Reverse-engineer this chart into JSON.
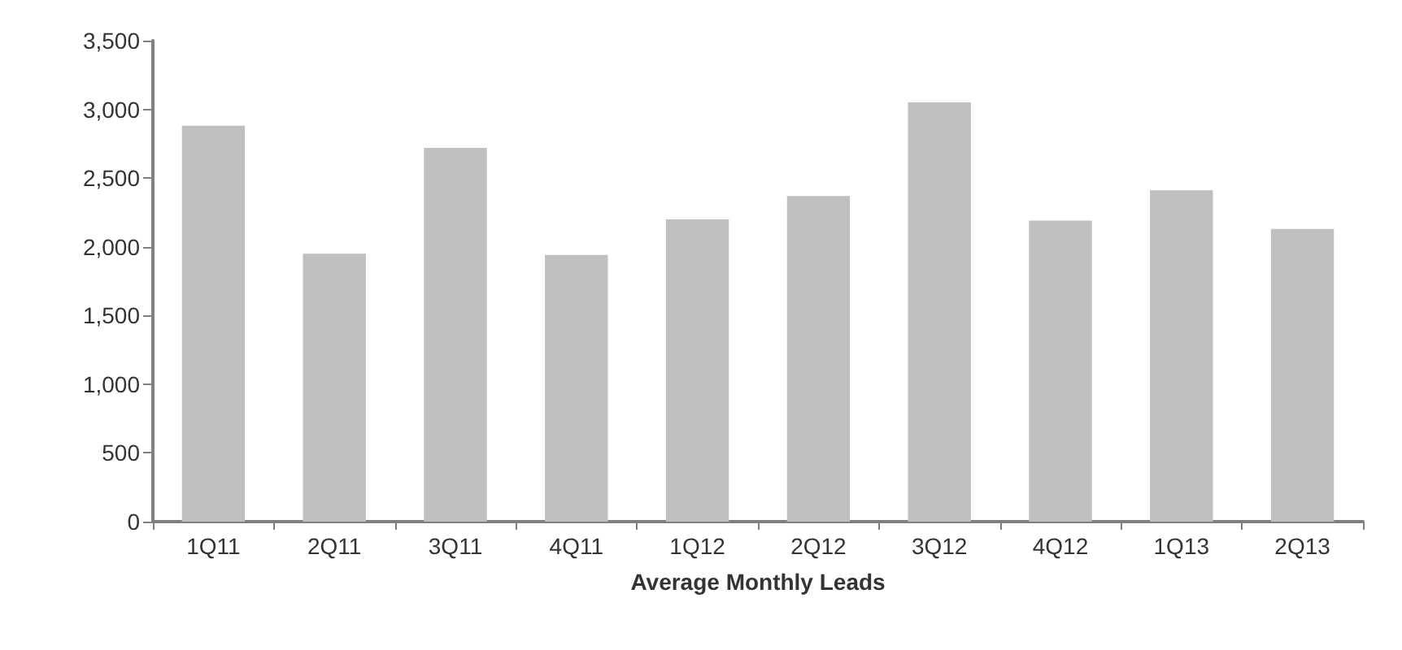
{
  "chart_data": {
    "type": "bar",
    "xlabel": "Average Monthly Leads",
    "categories": [
      "1Q11",
      "2Q11",
      "3Q11",
      "4Q11",
      "1Q12",
      "2Q12",
      "3Q12",
      "4Q12",
      "1Q13",
      "2Q13"
    ],
    "values": [
      2880,
      1950,
      2720,
      1940,
      2200,
      2370,
      3050,
      2190,
      2410,
      2130
    ],
    "color": "#bfbfbf",
    "ylim": [
      0,
      3500
    ],
    "yticks": [
      0,
      500,
      {
        "value": 1000,
        "label": "1,000"
      },
      {
        "value": 1500,
        "label": "1,500"
      },
      {
        "value": 2000,
        "label": "2,000"
      },
      {
        "value": 2500,
        "label": "2,500"
      },
      {
        "value": 3000,
        "label": "3,000"
      },
      {
        "value": 3500,
        "label": "3,500"
      }
    ],
    "grid": false
  }
}
